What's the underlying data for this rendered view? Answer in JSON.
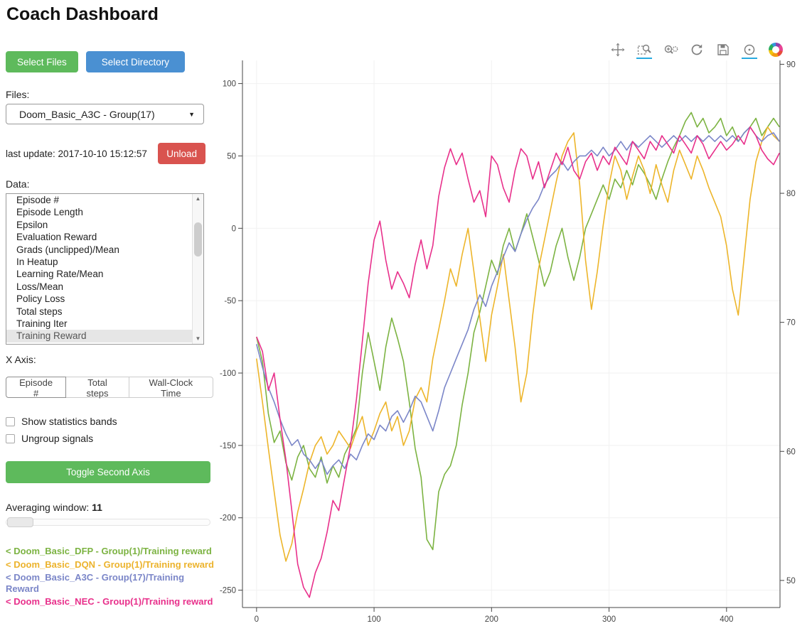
{
  "header": {
    "title": "Coach Dashboard"
  },
  "colors": {
    "green_button": "#5eba5c",
    "blue_button": "#4a90d2",
    "red_button": "#d9534f",
    "active_tool_underline": "#26aae1"
  },
  "sidebar": {
    "select_files_label": "Select Files",
    "select_directory_label": "Select Directory",
    "files_label": "Files:",
    "files_selected": "Doom_Basic_A3C - Group(17)",
    "last_update": "last update: 2017-10-10 15:12:57",
    "unload_label": "Unload",
    "data_label": "Data:",
    "data_items": [
      "Episode #",
      "Episode Length",
      "Epsilon",
      "Evaluation Reward",
      "Grads (unclipped)/Mean",
      "In Heatup",
      "Learning Rate/Mean",
      "Loss/Mean",
      "Policy Loss",
      "Total steps",
      "Training Iter",
      "Training Reward"
    ],
    "selected_data_item": "Training Reward",
    "x_axis_label": "X Axis:",
    "x_axis_options": [
      "Episode #",
      "Total steps",
      "Wall-Clock Time"
    ],
    "x_axis_selected": "Episode #",
    "checkboxes": [
      {
        "label": "Show statistics bands",
        "checked": false
      },
      {
        "label": "Ungroup signals",
        "checked": false
      }
    ],
    "toggle_second_axis_label": "Toggle Second Axis",
    "averaging_window_label": "Averaging window:",
    "averaging_window_value": "11",
    "legend": [
      {
        "label": "< Doom_Basic_DFP - Group(1)/Training reward",
        "color": "#7cb342"
      },
      {
        "label": "< Doom_Basic_DQN - Group(1)/Training reward",
        "color": "#ecb32c"
      },
      {
        "label": "< Doom_Basic_A3C - Group(17)/Training Reward",
        "color": "#7b86c8"
      },
      {
        "label": "< Doom_Basic_NEC - Group(1)/Training reward",
        "color": "#e8308b"
      }
    ]
  },
  "chart_toolbar": {
    "tools": [
      "pan",
      "box-zoom",
      "wheel-zoom",
      "reset",
      "save",
      "hover",
      "bokeh-logo"
    ],
    "active_tools": [
      "box-zoom",
      "hover"
    ]
  },
  "chart_data": {
    "type": "line",
    "title": "",
    "xlabel": "",
    "ylabel": "",
    "x_ticks": [
      0,
      100,
      200,
      300,
      400
    ],
    "y_left_ticks": [
      100,
      50,
      0,
      -50,
      -100,
      -150,
      -200,
      -250
    ],
    "y_right_ticks": [
      90,
      80,
      70,
      60,
      50
    ],
    "xlim": [
      -12,
      445.5
    ],
    "ylim_left": [
      -262,
      116
    ],
    "ylim_right": [
      47.9,
      90.3
    ],
    "x": [
      0,
      5,
      10,
      15,
      20,
      25,
      30,
      35,
      40,
      45,
      50,
      55,
      60,
      65,
      70,
      75,
      80,
      85,
      90,
      95,
      100,
      105,
      110,
      115,
      120,
      125,
      130,
      135,
      140,
      145,
      150,
      155,
      160,
      165,
      170,
      175,
      180,
      185,
      190,
      195,
      200,
      205,
      210,
      215,
      220,
      225,
      230,
      235,
      240,
      245,
      250,
      255,
      260,
      265,
      270,
      275,
      280,
      285,
      290,
      295,
      300,
      305,
      310,
      315,
      320,
      325,
      330,
      335,
      340,
      345,
      350,
      355,
      360,
      365,
      370,
      375,
      380,
      385,
      390,
      395,
      400,
      405,
      410,
      415,
      420,
      425,
      430,
      435,
      440,
      445
    ],
    "series": [
      {
        "name": "Doom_Basic_DFP - Group(1)/Training reward",
        "color": "#7cb342",
        "axis": "left",
        "values": [
          -75,
          -92,
          -128,
          -148,
          -140,
          -162,
          -174,
          -158,
          -150,
          -166,
          -172,
          -158,
          -176,
          -164,
          -172,
          -156,
          -148,
          -138,
          -100,
          -72,
          -92,
          -112,
          -82,
          -62,
          -76,
          -92,
          -120,
          -152,
          -172,
          -215,
          -222,
          -182,
          -170,
          -164,
          -150,
          -122,
          -100,
          -72,
          -58,
          -40,
          -22,
          -32,
          -12,
          0,
          -16,
          -4,
          10,
          -6,
          -22,
          -40,
          -30,
          -12,
          0,
          -20,
          -36,
          -20,
          0,
          10,
          20,
          30,
          20,
          34,
          28,
          40,
          30,
          44,
          38,
          30,
          20,
          34,
          46,
          56,
          64,
          74,
          80,
          70,
          76,
          66,
          70,
          76,
          64,
          70,
          60,
          66,
          70,
          76,
          64,
          70,
          76,
          70
        ]
      },
      {
        "name": "Doom_Basic_DQN - Group(1)/Training reward",
        "color": "#edb52a",
        "axis": "left",
        "values": [
          -90,
          -120,
          -152,
          -182,
          -212,
          -230,
          -218,
          -196,
          -180,
          -162,
          -150,
          -144,
          -156,
          -150,
          -140,
          -146,
          -152,
          -140,
          -130,
          -150,
          -140,
          -128,
          -120,
          -140,
          -130,
          -150,
          -140,
          -118,
          -110,
          -120,
          -90,
          -70,
          -50,
          -28,
          -40,
          -18,
          0,
          -30,
          -62,
          -92,
          -60,
          -40,
          -18,
          -50,
          -82,
          -120,
          -100,
          -60,
          -28,
          -8,
          12,
          32,
          50,
          60,
          66,
          30,
          -22,
          -56,
          -30,
          2,
          30,
          50,
          40,
          20,
          36,
          50,
          40,
          24,
          44,
          30,
          18,
          40,
          54,
          44,
          34,
          50,
          40,
          28,
          18,
          8,
          -12,
          -42,
          -60,
          -20,
          20,
          46,
          60,
          70,
          64,
          60
        ]
      },
      {
        "name": "Doom_Basic_A3C - Group(17)/Training Reward",
        "color": "#7b86c8",
        "axis": "left",
        "values": [
          -80,
          -96,
          -110,
          -120,
          -132,
          -142,
          -150,
          -146,
          -156,
          -160,
          -166,
          -160,
          -170,
          -164,
          -160,
          -166,
          -156,
          -160,
          -150,
          -142,
          -146,
          -136,
          -140,
          -130,
          -126,
          -134,
          -126,
          -116,
          -120,
          -130,
          -140,
          -126,
          -110,
          -100,
          -90,
          -80,
          -70,
          -56,
          -46,
          -54,
          -40,
          -30,
          -20,
          -10,
          -16,
          -4,
          6,
          14,
          20,
          30,
          36,
          40,
          46,
          40,
          46,
          50,
          50,
          54,
          50,
          56,
          50,
          54,
          60,
          54,
          60,
          56,
          60,
          64,
          60,
          56,
          60,
          64,
          60,
          64,
          60,
          64,
          60,
          64,
          60,
          64,
          60,
          64,
          60,
          66,
          70,
          64,
          60,
          64,
          66,
          60
        ]
      },
      {
        "name": "Doom_Basic_NEC - Group(1)/Training reward",
        "color": "#e8308b",
        "axis": "left",
        "values": [
          -75,
          -85,
          -112,
          -100,
          -132,
          -160,
          -195,
          -232,
          -248,
          -255,
          -238,
          -228,
          -210,
          -188,
          -195,
          -172,
          -150,
          -118,
          -78,
          -38,
          -8,
          5,
          -22,
          -42,
          -30,
          -38,
          -48,
          -25,
          -8,
          -28,
          -12,
          22,
          42,
          55,
          44,
          52,
          34,
          18,
          26,
          8,
          50,
          44,
          28,
          18,
          40,
          55,
          50,
          34,
          46,
          28,
          40,
          52,
          44,
          56,
          40,
          34,
          46,
          52,
          40,
          50,
          44,
          56,
          50,
          44,
          60,
          54,
          48,
          60,
          54,
          64,
          58,
          52,
          64,
          58,
          52,
          64,
          58,
          48,
          54,
          60,
          54,
          58,
          64,
          58,
          70,
          64,
          54,
          48,
          44,
          52
        ]
      }
    ]
  }
}
